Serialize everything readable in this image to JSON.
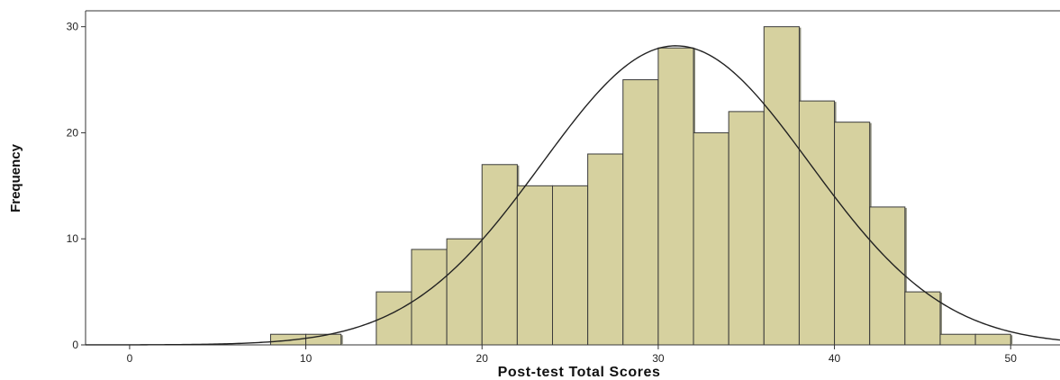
{
  "chart_data": {
    "type": "bar",
    "subtype": "histogram",
    "title": "",
    "xlabel": "Post-test Total Scores",
    "ylabel": "Frequency",
    "bin_width": 2,
    "bins": [
      {
        "start": 8,
        "end": 10,
        "count": 1
      },
      {
        "start": 10,
        "end": 12,
        "count": 1
      },
      {
        "start": 14,
        "end": 16,
        "count": 5
      },
      {
        "start": 16,
        "end": 18,
        "count": 9
      },
      {
        "start": 18,
        "end": 20,
        "count": 10
      },
      {
        "start": 20,
        "end": 22,
        "count": 17
      },
      {
        "start": 22,
        "end": 24,
        "count": 15
      },
      {
        "start": 24,
        "end": 26,
        "count": 15
      },
      {
        "start": 26,
        "end": 28,
        "count": 18
      },
      {
        "start": 28,
        "end": 30,
        "count": 25
      },
      {
        "start": 30,
        "end": 32,
        "count": 28
      },
      {
        "start": 32,
        "end": 34,
        "count": 20
      },
      {
        "start": 34,
        "end": 36,
        "count": 22
      },
      {
        "start": 36,
        "end": 38,
        "count": 30
      },
      {
        "start": 38,
        "end": 40,
        "count": 23
      },
      {
        "start": 40,
        "end": 42,
        "count": 21
      },
      {
        "start": 42,
        "end": 44,
        "count": 13
      },
      {
        "start": 44,
        "end": 46,
        "count": 5
      },
      {
        "start": 46,
        "end": 48,
        "count": 1
      },
      {
        "start": 48,
        "end": 50,
        "count": 1
      }
    ],
    "normal_curve": {
      "mean": 31,
      "sd": 7.6,
      "peak": 28.2
    },
    "xlim": [
      -2.5,
      52.8
    ],
    "ylim": [
      0,
      31.5
    ],
    "x_ticks": [
      "0",
      "10",
      "20",
      "30",
      "40",
      "50"
    ],
    "y_ticks": [
      "0",
      "10",
      "20",
      "30"
    ],
    "grid": false,
    "legend": "none",
    "colors": {
      "bar_fill": "#d6d19f",
      "bar_edge": "#3a3a3a",
      "bar_shadow": "#8b8b7a",
      "curve": "#222222",
      "axis": "#333333"
    }
  }
}
